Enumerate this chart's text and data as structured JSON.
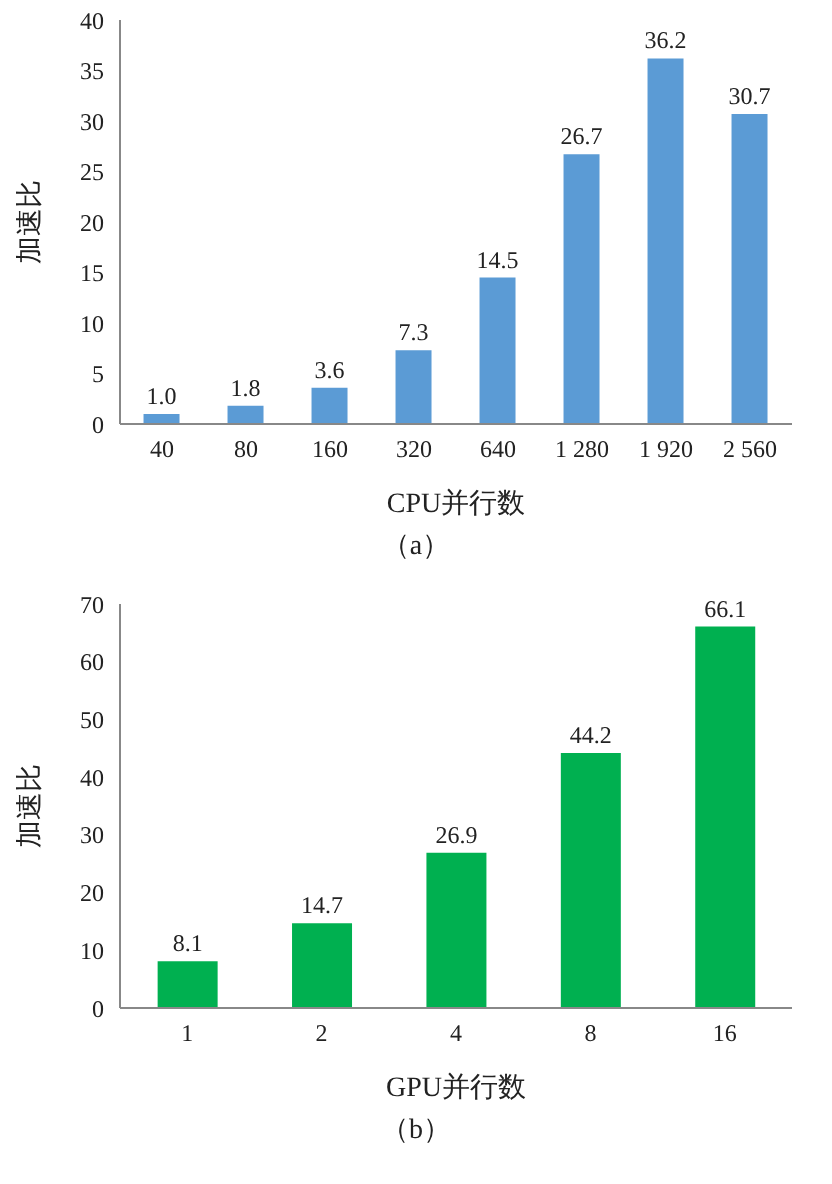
{
  "chart_data": [
    {
      "type": "bar",
      "categories": [
        "40",
        "80",
        "160",
        "320",
        "640",
        "1 280",
        "1 920",
        "2 560"
      ],
      "values": [
        1.0,
        1.8,
        3.6,
        7.3,
        14.5,
        26.7,
        36.2,
        30.7
      ],
      "value_labels": [
        "1.0",
        "1.8",
        "3.6",
        "7.3",
        "14.5",
        "26.7",
        "36.2",
        "30.7"
      ],
      "color": "#5b9bd5",
      "ylim": [
        0,
        40
      ],
      "yticks": [
        0,
        5,
        10,
        15,
        20,
        25,
        30,
        35,
        40
      ],
      "xlabel": "CPU并行数",
      "ylabel": "加速比",
      "annotations": [
        "（a）"
      ]
    },
    {
      "type": "bar",
      "categories": [
        "1",
        "2",
        "4",
        "8",
        "16"
      ],
      "values": [
        8.1,
        14.7,
        26.9,
        44.2,
        66.1
      ],
      "value_labels": [
        "8.1",
        "14.7",
        "26.9",
        "44.2",
        "66.1"
      ],
      "color": "#00b050",
      "ylim": [
        0,
        70
      ],
      "yticks": [
        0,
        10,
        20,
        30,
        40,
        50,
        60,
        70
      ],
      "xlabel": "GPU并行数",
      "ylabel": "加速比",
      "annotations": [
        "（b）"
      ]
    }
  ]
}
